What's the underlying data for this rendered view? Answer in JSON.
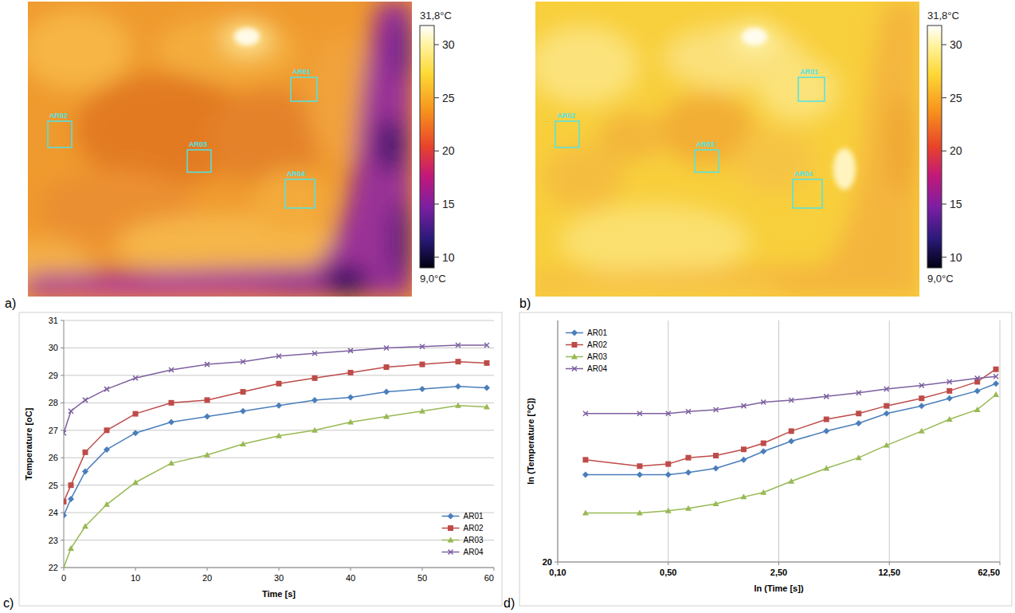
{
  "images": [
    {
      "panel_label": "a)",
      "colorbar": {
        "max": {
          "value": 31.8,
          "label": "31,8°C"
        },
        "min": {
          "value": 9.0,
          "label": "9,0°C"
        },
        "ticks": [
          10,
          15,
          20,
          25,
          30
        ]
      },
      "rois": [
        "AR01",
        "AR02",
        "AR03",
        "AR04"
      ]
    },
    {
      "panel_label": "b)",
      "colorbar": {
        "max": {
          "value": 31.8,
          "label": "31,8°C"
        },
        "min": {
          "value": 9.0,
          "label": "9,0°C"
        },
        "ticks": [
          10,
          15,
          20,
          25,
          30
        ]
      },
      "rois": [
        "AR01",
        "AR02",
        "AR03",
        "AR04"
      ]
    }
  ],
  "chart_data": [
    {
      "type": "line",
      "panel_label": "c)",
      "x_label": "Time [s]",
      "y_label": "Temperature [oC]",
      "x": [
        0,
        1,
        3,
        6,
        10,
        15,
        20,
        25,
        30,
        35,
        40,
        45,
        50,
        55,
        59
      ],
      "series": [
        {
          "name": "AR01",
          "color": "#4a7ebb",
          "marker": "diamond",
          "values": [
            23.9,
            24.5,
            25.5,
            26.3,
            26.9,
            27.3,
            27.5,
            27.7,
            27.9,
            28.1,
            28.2,
            28.4,
            28.5,
            28.6,
            28.55
          ]
        },
        {
          "name": "AR02",
          "color": "#be4b48",
          "marker": "square",
          "values": [
            24.4,
            25.0,
            26.2,
            27.0,
            27.6,
            28.0,
            28.1,
            28.4,
            28.7,
            28.9,
            29.1,
            29.3,
            29.4,
            29.5,
            29.45
          ]
        },
        {
          "name": "AR03",
          "color": "#98b954",
          "marker": "triangle",
          "values": [
            22.0,
            22.7,
            23.5,
            24.3,
            25.1,
            25.8,
            26.1,
            26.5,
            26.8,
            27.0,
            27.3,
            27.5,
            27.7,
            27.9,
            27.85
          ]
        },
        {
          "name": "AR04",
          "color": "#7d60a0",
          "marker": "x",
          "values": [
            26.9,
            27.7,
            28.1,
            28.5,
            28.9,
            29.2,
            29.4,
            29.5,
            29.7,
            29.8,
            29.9,
            30.0,
            30.05,
            30.1,
            30.1
          ]
        }
      ],
      "xlim": [
        0,
        60
      ],
      "ylim": [
        22,
        31
      ],
      "xticks": [
        0,
        10,
        20,
        30,
        40,
        50,
        60
      ],
      "yticks": [
        22,
        23,
        24,
        25,
        26,
        27,
        28,
        29,
        30,
        31
      ],
      "grid": "y",
      "legend": "lower-right"
    },
    {
      "type": "line",
      "panel_label": "d)",
      "x_label": "ln (Time [s])",
      "y_label": "ln (Temperature [°C])",
      "log": true,
      "x": [
        0.15,
        0.33,
        0.5,
        0.67,
        1,
        1.5,
        2,
        3,
        5,
        8,
        12,
        20,
        30,
        45,
        59
      ],
      "series": [
        {
          "name": "AR01",
          "color": "#4a7ebb",
          "marker": "diamond",
          "values": [
            23.7,
            23.7,
            23.7,
            23.8,
            24.0,
            24.4,
            24.8,
            25.3,
            25.8,
            26.2,
            26.7,
            27.1,
            27.5,
            27.9,
            28.3
          ]
        },
        {
          "name": "AR02",
          "color": "#be4b48",
          "marker": "square",
          "values": [
            24.4,
            24.1,
            24.2,
            24.5,
            24.6,
            24.9,
            25.2,
            25.8,
            26.4,
            26.7,
            27.1,
            27.5,
            27.9,
            28.4,
            29.1
          ]
        },
        {
          "name": "AR03",
          "color": "#98b954",
          "marker": "triangle",
          "values": [
            22.0,
            22.0,
            22.1,
            22.2,
            22.4,
            22.7,
            22.9,
            23.4,
            24.0,
            24.5,
            25.1,
            25.8,
            26.4,
            26.9,
            27.7
          ]
        },
        {
          "name": "AR04",
          "color": "#7d60a0",
          "marker": "x",
          "values": [
            26.7,
            26.7,
            26.7,
            26.8,
            26.9,
            27.1,
            27.3,
            27.4,
            27.6,
            27.8,
            28.0,
            28.2,
            28.4,
            28.6,
            28.7
          ]
        }
      ],
      "xlim": [
        0.1,
        62.5
      ],
      "ylim": [
        20,
        32
      ],
      "xticks": [
        {
          "value": 0.1,
          "label": "0,10"
        },
        {
          "value": 0.5,
          "label": "0,50"
        },
        {
          "value": 2.5,
          "label": "2,50"
        },
        {
          "value": 12.5,
          "label": "12,50"
        },
        {
          "value": 62.5,
          "label": "62,50"
        }
      ],
      "yticks": [
        20
      ],
      "grid": true,
      "legend": "upper-left"
    }
  ]
}
